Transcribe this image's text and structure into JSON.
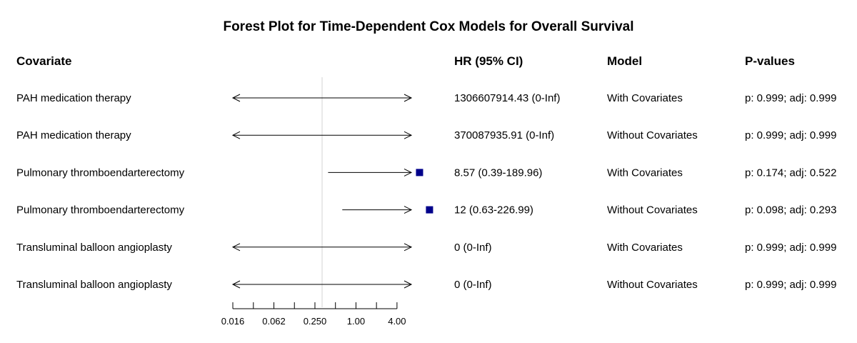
{
  "title": "Forest Plot for Time-Dependent Cox Models for Overall Survival",
  "headers": {
    "covariate": "Covariate",
    "hr": "HR (95% CI)",
    "model": "Model",
    "pvalues": "P-values"
  },
  "chart_data": {
    "type": "forest",
    "title": "Forest Plot for Time-Dependent Cox Models for Overall Survival",
    "x_scale": "log2",
    "reference_line": 1,
    "xlim": [
      0.0156,
      6.5
    ],
    "x_ticks": [
      0.0156,
      0.03125,
      0.0625,
      0.125,
      0.25,
      0.5,
      1,
      2,
      4
    ],
    "x_tick_labels": [
      {
        "value": 0.0156,
        "label": "0.016"
      },
      {
        "value": 0.0625,
        "label": "0.062"
      },
      {
        "value": 0.25,
        "label": "0.250"
      },
      {
        "value": 1,
        "label": "1.00"
      },
      {
        "value": 4,
        "label": "4.00"
      }
    ],
    "marker_color": "#00008B",
    "rows": [
      {
        "covariate": "PAH medication therapy",
        "hr": 1306607914.43,
        "lower": 0,
        "upper": "Inf",
        "hr_label": "1306607914.43 (0-Inf)",
        "model": "With Covariates",
        "pvalue": "p: 0.999; adj: 0.999",
        "left_arrow": true,
        "right_arrow": true,
        "show_point": false
      },
      {
        "covariate": "PAH medication therapy",
        "hr": 370087935.91,
        "lower": 0,
        "upper": "Inf",
        "hr_label": "370087935.91 (0-Inf)",
        "model": "Without Covariates",
        "pvalue": "p: 0.999; adj: 0.999",
        "left_arrow": true,
        "right_arrow": true,
        "show_point": false
      },
      {
        "covariate": "Pulmonary thromboendarterectomy",
        "hr": 8.57,
        "lower": 0.39,
        "upper": 189.96,
        "hr_label": "8.57 (0.39-189.96)",
        "model": "With Covariates",
        "pvalue": "p: 0.174; adj: 0.522",
        "left_arrow": false,
        "right_arrow": true,
        "show_point": true
      },
      {
        "covariate": "Pulmonary thromboendarterectomy",
        "hr": 12,
        "lower": 0.63,
        "upper": 226.99,
        "hr_label": "12 (0.63-226.99)",
        "model": "Without Covariates",
        "pvalue": "p: 0.098; adj: 0.293",
        "left_arrow": false,
        "right_arrow": true,
        "show_point": true
      },
      {
        "covariate": "Transluminal balloon angioplasty",
        "hr": 0,
        "lower": 0,
        "upper": "Inf",
        "hr_label": "0 (0-Inf)",
        "model": "With Covariates",
        "pvalue": "p: 0.999; adj: 0.999",
        "left_arrow": true,
        "right_arrow": true,
        "show_point": false
      },
      {
        "covariate": "Transluminal balloon angioplasty",
        "hr": 0,
        "lower": 0,
        "upper": "Inf",
        "hr_label": "0 (0-Inf)",
        "model": "Without Covariates",
        "pvalue": "p: 0.999; adj: 0.999",
        "left_arrow": true,
        "right_arrow": true,
        "show_point": false
      }
    ]
  }
}
